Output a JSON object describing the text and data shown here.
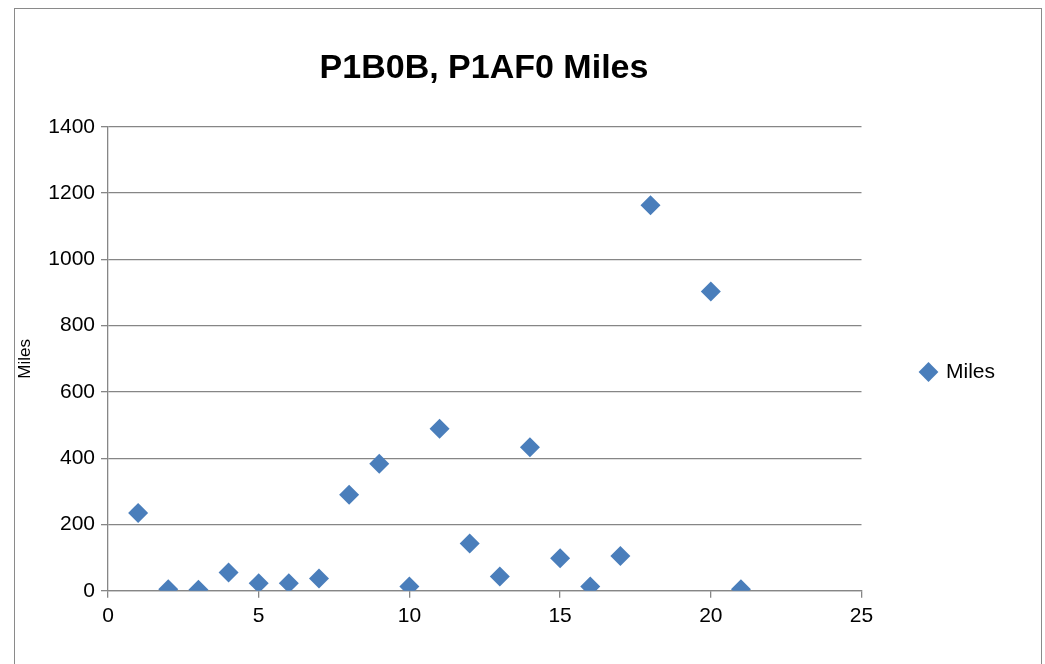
{
  "chart_data": {
    "type": "scatter",
    "title": "P1B0B, P1AF0 Miles",
    "ylabel": "Miles",
    "x": [
      1,
      2,
      3,
      4,
      5,
      6,
      7,
      8,
      9,
      10,
      11,
      12,
      13,
      14,
      15,
      16,
      17,
      18,
      20,
      21
    ],
    "series": [
      {
        "name": "Miles",
        "color": "#4a7ebb",
        "values": [
          235,
          5,
          3,
          55,
          23,
          23,
          37,
          290,
          383,
          13,
          489,
          143,
          43,
          433,
          98,
          13,
          105,
          1163,
          903,
          5
        ]
      }
    ],
    "xlim": [
      0,
      25
    ],
    "xticks": [
      0,
      5,
      10,
      15,
      20,
      25
    ],
    "ylim": [
      0,
      1400
    ],
    "yticks": [
      0,
      200,
      400,
      600,
      800,
      1000,
      1200,
      1400
    ],
    "grid": "y",
    "legend": "right",
    "marker": "diamond"
  }
}
